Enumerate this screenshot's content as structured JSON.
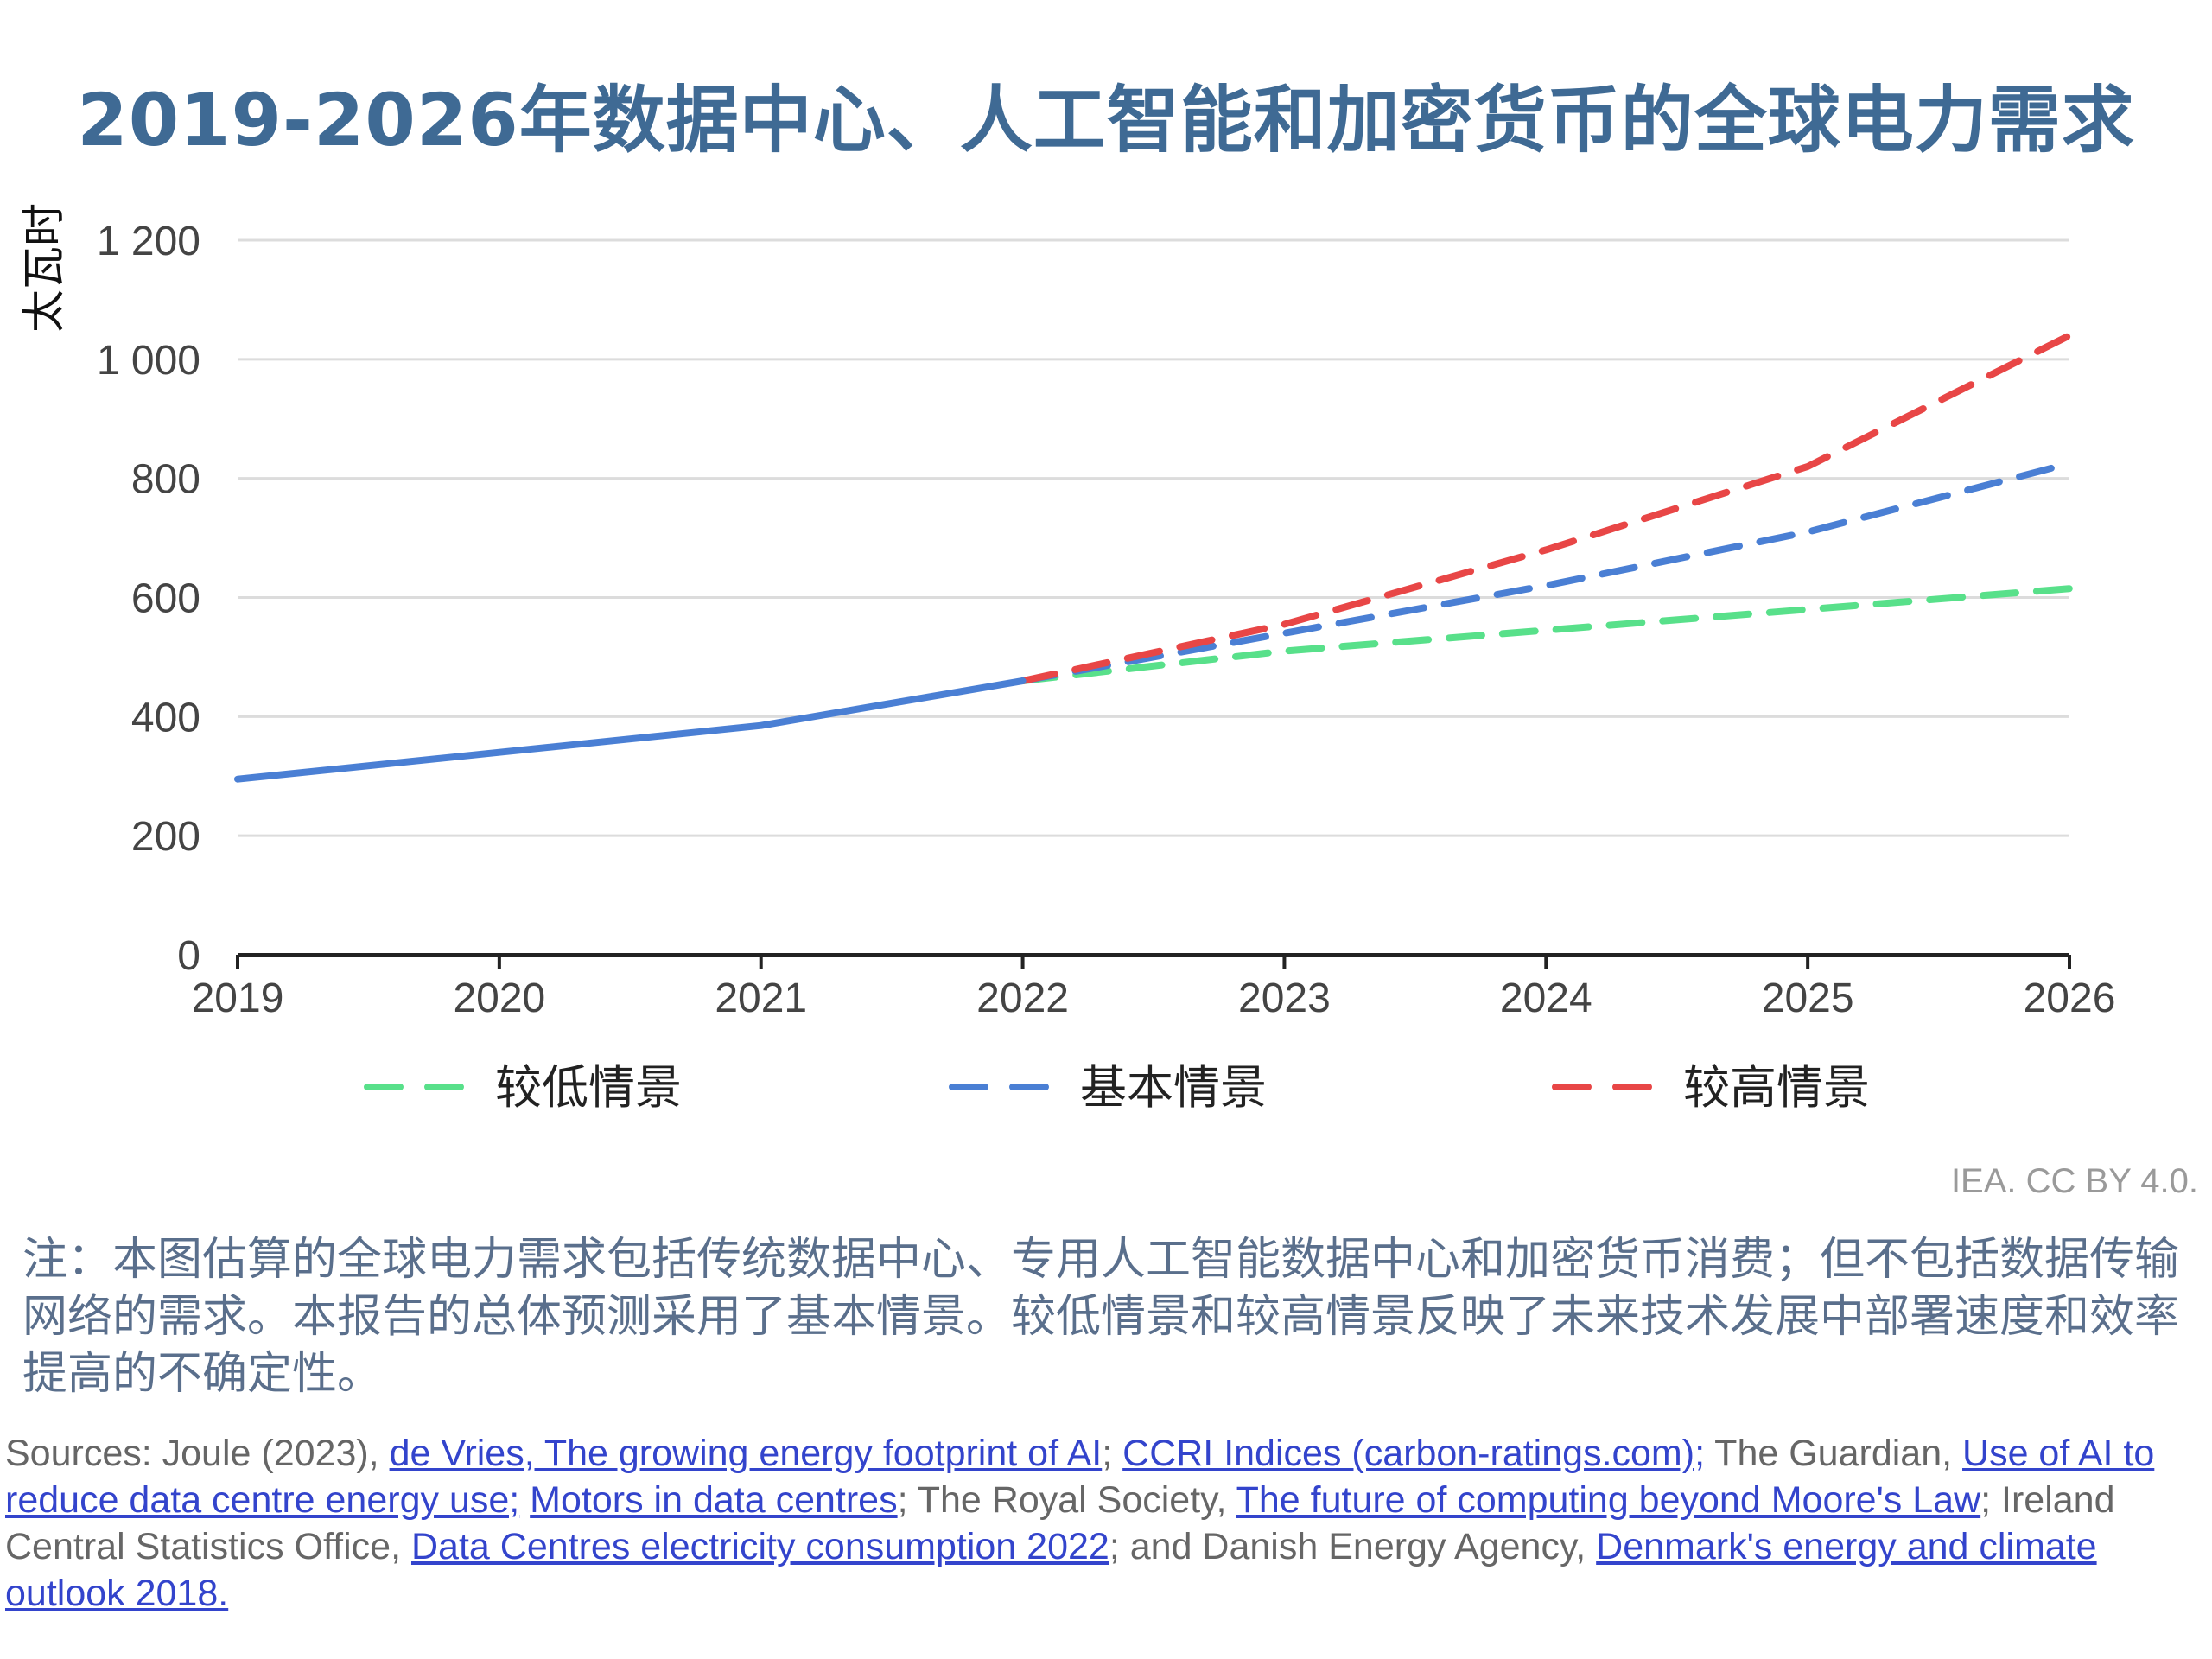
{
  "chart_data": {
    "type": "line",
    "title": "2019-2026年数据中心、人工智能和加密货币的全球电力需求",
    "ylabel": "太瓦时",
    "xlabel": "",
    "x": [
      2019,
      2020,
      2021,
      2022,
      2023,
      2024,
      2025,
      2026
    ],
    "ylim": [
      0,
      1200
    ],
    "yticks": [
      0,
      200,
      400,
      600,
      800,
      1000,
      1200
    ],
    "ytick_labels": [
      "0",
      "200",
      "400",
      "600",
      "800",
      "1 000",
      "1 200"
    ],
    "xtick_labels": [
      "2019",
      "2020",
      "2021",
      "2022",
      "2023",
      "2024",
      "2025",
      "2026"
    ],
    "grid": "horizontal",
    "legend_position": "bottom",
    "historical": {
      "x": [
        2019,
        2020,
        2021,
        2022
      ],
      "values": [
        295,
        340,
        385,
        460
      ],
      "color": "#4a7fd4",
      "style": "solid"
    },
    "series": [
      {
        "name": "较低情景",
        "x": [
          2022,
          2023,
          2024,
          2025,
          2026
        ],
        "values": [
          460,
          510,
          545,
          580,
          615
        ],
        "color": "#58e08a",
        "style": "dashed"
      },
      {
        "name": "基本情景",
        "x": [
          2022,
          2023,
          2024,
          2025,
          2026
        ],
        "values": [
          460,
          540,
          620,
          710,
          825
        ],
        "color": "#4a7fd4",
        "style": "dashed"
      },
      {
        "name": "较高情景",
        "x": [
          2022,
          2023,
          2024,
          2025,
          2026
        ],
        "values": [
          460,
          555,
          680,
          820,
          1040
        ],
        "color": "#e84646",
        "style": "dashed"
      }
    ]
  },
  "credit": "IEA. CC BY 4.0.",
  "note": "注：本图估算的全球电力需求包括传统数据中心、专用人工智能数据中心和加密货币消费；但不包括数据传输网络的需求。本报告的总体预测采用了基本情景。较低情景和较高情景反映了未来技术发展中部署速度和效率提高的不确定性。",
  "sources": {
    "prefix": "Sources: Joule (2023), ",
    "link1": "de Vries, The growing energy footprint of AI",
    "sep1": "; ",
    "link2": "CCRI Indices (carbon-ratings.com);",
    "text2": " The Guardian, ",
    "link3": "Use of AI to reduce data centre energy use;",
    "sep3": " ",
    "link4": "Motors in data centres",
    "text4": "; The Royal Society, ",
    "link5": "The future of computing beyond Moore's Law",
    "text5": "; Ireland Central Statistics Office, ",
    "link6": "Data Centres electricity consumption 2022",
    "text6": "; and Danish Energy Agency, ",
    "link7": "Denmark's energy and climate outlook 2018."
  }
}
